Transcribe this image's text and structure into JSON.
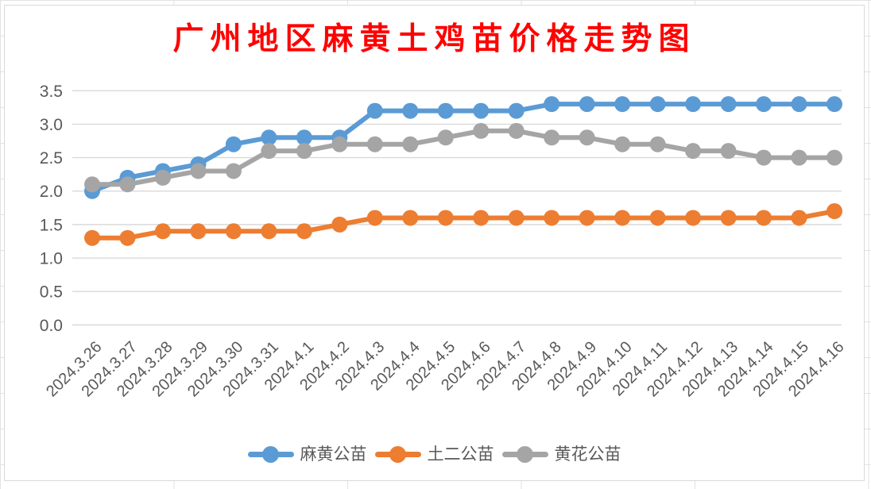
{
  "chart_data": {
    "type": "line",
    "title": "广州地区麻黄土鸡苗价格走势图",
    "categories": [
      "2024.3.26",
      "2024.3.27",
      "2024.3.28",
      "2024.3.29",
      "2024.3.30",
      "2024.3.31",
      "2024.4.1",
      "2024.4.2",
      "2024.4.3",
      "2024.4.4",
      "2024.4.5",
      "2024.4.6",
      "2024.4.7",
      "2024.4.8",
      "2024.4.9",
      "2024.4.10",
      "2024.4.11",
      "2024.4.12",
      "2024.4.13",
      "2024.4.14",
      "2024.4.15",
      "2024.4.16"
    ],
    "series": [
      {
        "name": "麻黄公苗",
        "color": "#5B9BD5",
        "values": [
          2.0,
          2.2,
          2.3,
          2.4,
          2.7,
          2.8,
          2.8,
          2.8,
          3.2,
          3.2,
          3.2,
          3.2,
          3.2,
          3.3,
          3.3,
          3.3,
          3.3,
          3.3,
          3.3,
          3.3,
          3.3,
          3.3
        ]
      },
      {
        "name": "土二公苗",
        "color": "#ED7D31",
        "values": [
          1.3,
          1.3,
          1.4,
          1.4,
          1.4,
          1.4,
          1.4,
          1.5,
          1.6,
          1.6,
          1.6,
          1.6,
          1.6,
          1.6,
          1.6,
          1.6,
          1.6,
          1.6,
          1.6,
          1.6,
          1.6,
          1.7
        ]
      },
      {
        "name": "黄花公苗",
        "color": "#A5A5A5",
        "values": [
          2.1,
          2.1,
          2.2,
          2.3,
          2.3,
          2.6,
          2.6,
          2.7,
          2.7,
          2.7,
          2.8,
          2.9,
          2.9,
          2.8,
          2.8,
          2.7,
          2.7,
          2.6,
          2.6,
          2.5,
          2.5,
          2.5
        ]
      }
    ],
    "y_ticks": [
      "0.0",
      "0.5",
      "1.0",
      "1.5",
      "2.0",
      "2.5",
      "3.0",
      "3.5"
    ],
    "ylim": [
      0,
      3.5
    ],
    "grid": true,
    "legend_position": "bottom",
    "marker": "circle"
  },
  "styles": {
    "title_color": "#FF0000",
    "axis_text_color": "#595959",
    "gridline_color": "#D9D9D9",
    "chart_border_color": "#D9D9D9",
    "sheet_gridline_color": "#E2E2E2"
  }
}
